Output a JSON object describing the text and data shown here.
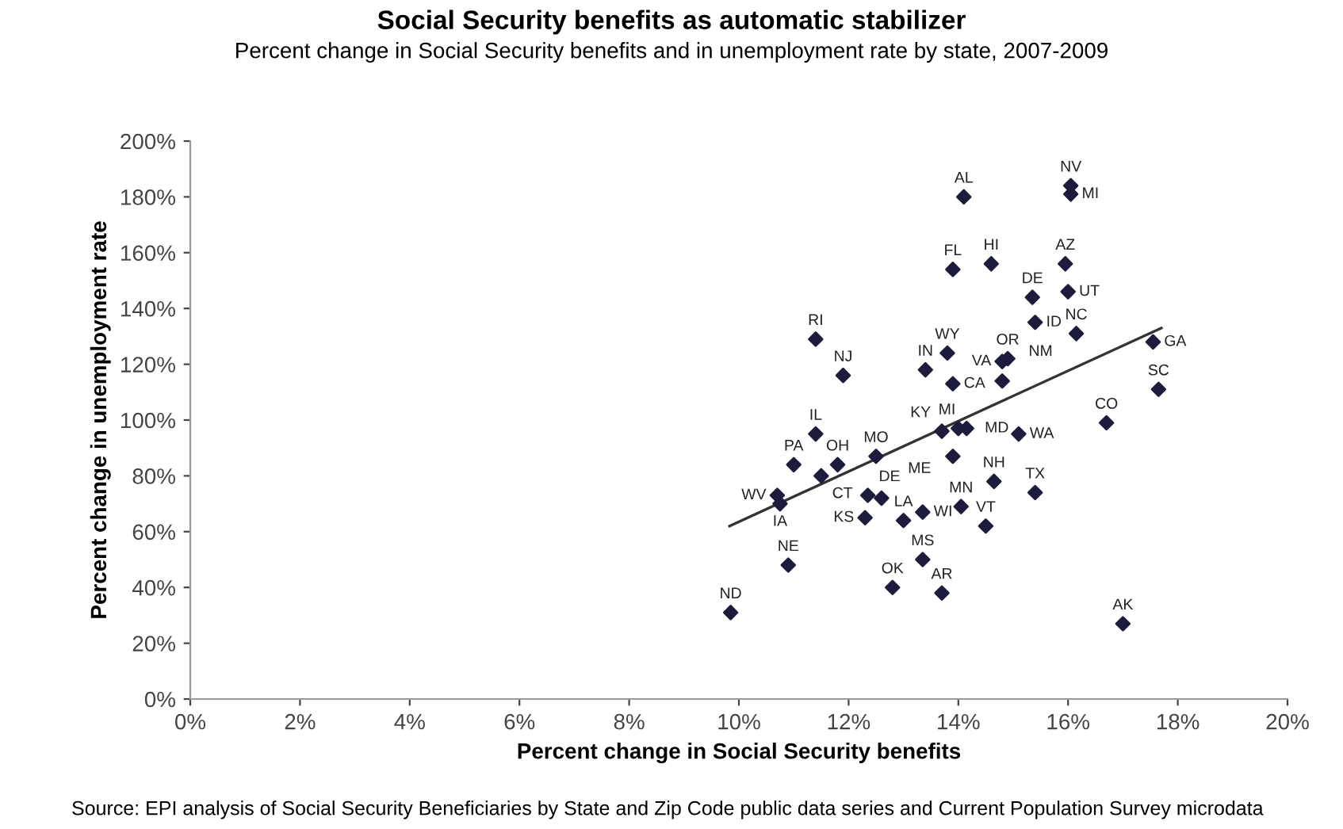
{
  "chart_data": {
    "type": "scatter",
    "title": "Social Security benefits as automatic stabilizer",
    "subtitle": "Percent change in Social Security benefits and in unemployment rate by state, 2007-2009",
    "xlabel": "Percent change in Social Security benefits",
    "ylabel": "Percent change in unemployment rate",
    "xlim": [
      0,
      20
    ],
    "ylim": [
      0,
      200
    ],
    "xticks": [
      {
        "value": 0,
        "label": "0%"
      },
      {
        "value": 2,
        "label": "2%"
      },
      {
        "value": 4,
        "label": "4%"
      },
      {
        "value": 6,
        "label": "6%"
      },
      {
        "value": 8,
        "label": "8%"
      },
      {
        "value": 10,
        "label": "10%"
      },
      {
        "value": 12,
        "label": "12%"
      },
      {
        "value": 14,
        "label": "14%"
      },
      {
        "value": 16,
        "label": "16%"
      },
      {
        "value": 18,
        "label": "18%"
      },
      {
        "value": 20,
        "label": "20%"
      }
    ],
    "yticks": [
      {
        "value": 0,
        "label": "0%"
      },
      {
        "value": 20,
        "label": "20%"
      },
      {
        "value": 40,
        "label": "40%"
      },
      {
        "value": 60,
        "label": "60%"
      },
      {
        "value": 80,
        "label": "80%"
      },
      {
        "value": 100,
        "label": "100%"
      },
      {
        "value": 120,
        "label": "120%"
      },
      {
        "value": 140,
        "label": "140%"
      },
      {
        "value": 160,
        "label": "160%"
      },
      {
        "value": 180,
        "label": "180%"
      },
      {
        "value": 200,
        "label": "200%"
      }
    ],
    "grid": false,
    "legend": false,
    "series": [
      {
        "color": "#1c1c3c",
        "marker": "diamond",
        "x": [
          14.1,
          13.9,
          14.6,
          13.8,
          13.4,
          13.9,
          14.9,
          14.8,
          11.4,
          11.9,
          11.4,
          12.5,
          11.0,
          11.8,
          11.5,
          10.7,
          10.75,
          10.9,
          9.85,
          12.35,
          12.6,
          12.3,
          13.0,
          13.35,
          13.35,
          12.8,
          13.7,
          14.05,
          14.5,
          14.65,
          13.7,
          14.0,
          14.15,
          13.9,
          14.8,
          15.1,
          15.4,
          16.7,
          17.0,
          15.35,
          15.4,
          15.95,
          16.0,
          16.15,
          16.05,
          16.05,
          17.55,
          17.65
        ],
        "values": [
          180,
          154,
          156,
          124,
          118,
          113,
          122,
          121,
          129,
          116,
          95,
          87,
          84,
          84,
          80,
          73,
          70,
          48,
          31,
          73,
          72,
          65,
          64,
          67,
          50,
          40,
          38,
          69,
          62,
          78,
          96,
          97,
          97,
          87,
          114,
          95,
          74,
          99,
          27,
          144,
          135,
          156,
          146,
          131,
          184,
          181,
          128,
          111
        ]
      },
      {
        "type": "line",
        "color": "#333333",
        "x": [
          9.83,
          17.7
        ],
        "values": [
          62,
          133
        ]
      }
    ],
    "annotations": [
      {
        "text": "AL",
        "x": 14.1,
        "y": 180
      },
      {
        "text": "FL",
        "x": 13.9,
        "y": 154
      },
      {
        "text": "HI",
        "x": 14.6,
        "y": 156
      },
      {
        "text": "WY",
        "x": 13.8,
        "y": 124
      },
      {
        "text": "IN",
        "x": 13.4,
        "y": 118
      },
      {
        "text": "CA",
        "x": 13.9,
        "y": 113
      },
      {
        "text": "OR",
        "x": 14.9,
        "y": 122
      },
      {
        "text": "VA",
        "x": 14.8,
        "y": 121
      },
      {
        "text": "RI",
        "x": 11.4,
        "y": 129
      },
      {
        "text": "NJ",
        "x": 11.9,
        "y": 116
      },
      {
        "text": "IL",
        "x": 11.4,
        "y": 95
      },
      {
        "text": "MO",
        "x": 12.5,
        "y": 87
      },
      {
        "text": "PA",
        "x": 11.0,
        "y": 84
      },
      {
        "text": "OH",
        "x": 11.8,
        "y": 84
      },
      {
        "text": "CT",
        "x": 11.5,
        "y": 80
      },
      {
        "text": "WV",
        "x": 10.7,
        "y": 73
      },
      {
        "text": "IA",
        "x": 10.75,
        "y": 70
      },
      {
        "text": "NE",
        "x": 10.9,
        "y": 48
      },
      {
        "text": "ND",
        "x": 9.85,
        "y": 31
      },
      {
        "text": "DE",
        "x": 12.35,
        "y": 73
      },
      {
        "text": "ME",
        "x": 12.6,
        "y": 72
      },
      {
        "text": "KS",
        "x": 12.3,
        "y": 65
      },
      {
        "text": "LA",
        "x": 13.0,
        "y": 64
      },
      {
        "text": "WI",
        "x": 13.35,
        "y": 67
      },
      {
        "text": "MS",
        "x": 13.35,
        "y": 50
      },
      {
        "text": "OK",
        "x": 12.8,
        "y": 40
      },
      {
        "text": "AR",
        "x": 13.7,
        "y": 38
      },
      {
        "text": "MN",
        "x": 14.05,
        "y": 69
      },
      {
        "text": "VT",
        "x": 14.5,
        "y": 62
      },
      {
        "text": "NH",
        "x": 14.65,
        "y": 78
      },
      {
        "text": "KY",
        "x": 13.7,
        "y": 96
      },
      {
        "text": "MD",
        "x": 14.0,
        "y": 97
      },
      {
        "text": "MI",
        "x": 14.15,
        "y": 97
      },
      {
        "text": "NM",
        "x": 14.8,
        "y": 114
      },
      {
        "text": "WA",
        "x": 15.1,
        "y": 95
      },
      {
        "text": "TX",
        "x": 15.4,
        "y": 74
      },
      {
        "text": "CO",
        "x": 16.7,
        "y": 99
      },
      {
        "text": "AK",
        "x": 17.0,
        "y": 27
      },
      {
        "text": "DE",
        "x": 15.35,
        "y": 144
      },
      {
        "text": "ID",
        "x": 15.4,
        "y": 135
      },
      {
        "text": "AZ",
        "x": 15.95,
        "y": 156
      },
      {
        "text": "UT",
        "x": 16.0,
        "y": 146
      },
      {
        "text": "NC",
        "x": 16.15,
        "y": 131
      },
      {
        "text": "NV",
        "x": 16.05,
        "y": 184
      },
      {
        "text": "MI",
        "x": 16.05,
        "y": 181
      },
      {
        "text": "GA",
        "x": 17.55,
        "y": 128
      },
      {
        "text": "SC",
        "x": 17.65,
        "y": 111
      },
      "Source: EPI analysis of Social Security Beneficiaries by State and Zip Code public data series and Current Population Survey microdata"
    ]
  }
}
